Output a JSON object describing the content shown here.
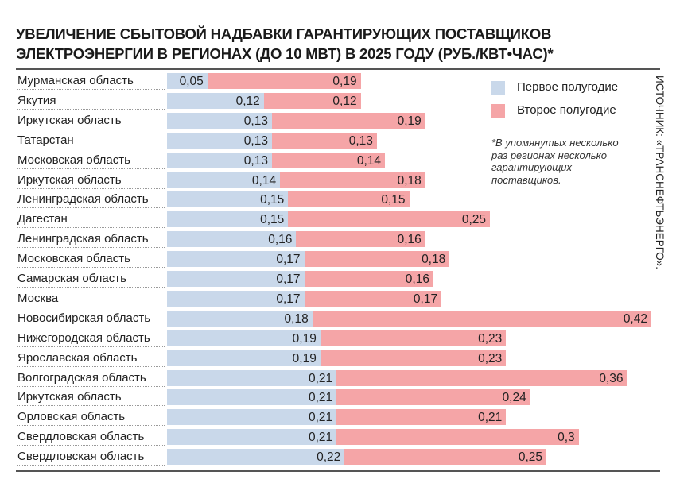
{
  "title_line1": "УВЕЛИЧЕНИЕ СБЫТОВОЙ НАДБАВКИ ГАРАНТИРУЮЩИХ ПОСТАВЩИКОВ",
  "title_line2": "ЭЛЕКТРОЭНЕРГИИ В РЕГИОНАХ (ДО 10 МВТ) В 2025 ГОДУ (РУБ./КВТ•ЧАС)*",
  "note": "*В упомянутых несколько раз регионах несколько гарантирующих поставщиков.",
  "source": "ИСТОЧНИК: «ТРАНСНЕФТЬЭНЕРГО».",
  "colors": {
    "first_half": "#c9d8ea",
    "second_half": "#f5a5a7"
  },
  "chart_data": {
    "type": "bar",
    "orientation": "horizontal",
    "stacked": true,
    "title": "УВЕЛИЧЕНИЕ СБЫТОВОЙ НАДБАВКИ ГАРАНТИРУЮЩИХ ПОСТАВЩИКОВ ЭЛЕКТРОЭНЕРГИИ В РЕГИОНАХ (ДО 10 МВТ) В 2025 ГОДУ (РУБ./КВТ•ЧАС)*",
    "legend_placement": "top-right",
    "grid": false,
    "categories": [
      "Мурманская область",
      "Якутия",
      "Иркутская область",
      "Татарстан",
      "Московская область",
      "Иркутская область",
      "Ленинградская область",
      "Дагестан",
      "Ленинградская область",
      "Московская область",
      "Самарская область",
      "Москва",
      "Новосибирская область",
      "Нижегородская область",
      "Ярославская область",
      "Волгоградская область",
      "Иркутская область",
      "Орловская область",
      "Свердловская область",
      "Свердловская область"
    ],
    "series": [
      {
        "name": "Первое полугодие",
        "values": [
          0.05,
          0.12,
          0.13,
          0.13,
          0.13,
          0.14,
          0.15,
          0.15,
          0.16,
          0.17,
          0.17,
          0.17,
          0.18,
          0.19,
          0.19,
          0.21,
          0.21,
          0.21,
          0.21,
          0.22
        ]
      },
      {
        "name": "Второе полугодие",
        "values": [
          0.19,
          0.12,
          0.19,
          0.13,
          0.14,
          0.18,
          0.15,
          0.25,
          0.16,
          0.18,
          0.16,
          0.17,
          0.42,
          0.23,
          0.23,
          0.36,
          0.24,
          0.21,
          0.3,
          0.25
        ]
      }
    ]
  }
}
